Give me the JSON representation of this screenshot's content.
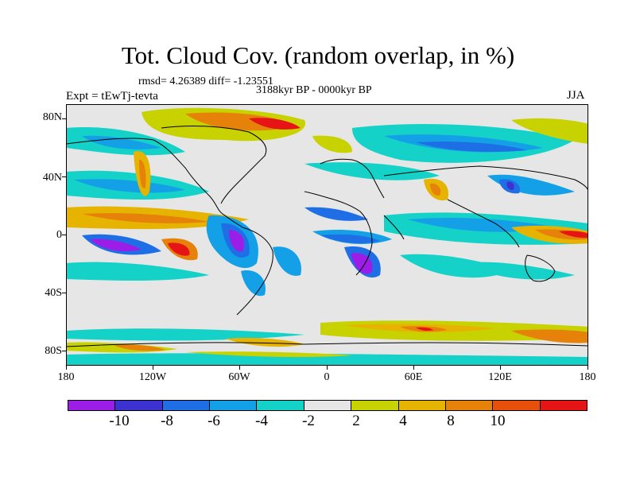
{
  "title": "Tot. Cloud Cov. (random overlap, in %)",
  "stats": "rmsd= 4.26389 diff= -1.23551",
  "period": "3188kyr BP - 0000kyr BP",
  "experiment": "Expt = tEwTj-tevta",
  "season": "JJA",
  "map": {
    "projection": "cylindrical equidistant",
    "lat_labels": [
      "80N",
      "40N",
      "0",
      "40S",
      "80S"
    ],
    "lon_labels": [
      "180",
      "120W",
      "60W",
      "0",
      "60E",
      "120E",
      "180"
    ],
    "background_fill": "#e6e6e6"
  },
  "colorbar": {
    "colors": [
      "#9c1ee6",
      "#3c32d2",
      "#1e6ee6",
      "#14a0e6",
      "#14d2c8",
      "#e6e6e6",
      "#c8d200",
      "#e6b400",
      "#e6820a",
      "#e6500a",
      "#e61414"
    ],
    "labels": [
      "-10",
      "-8",
      "-6",
      "-4",
      "-2",
      "2",
      "4",
      "8",
      "10"
    ]
  }
}
